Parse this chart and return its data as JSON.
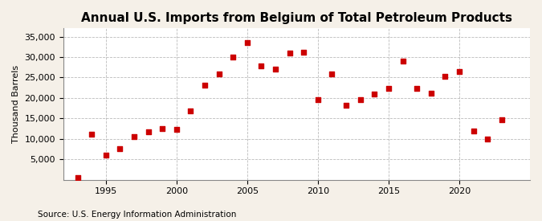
{
  "title": "Annual U.S. Imports from Belgium of Total Petroleum Products",
  "ylabel": "Thousand Barrels",
  "source": "Source: U.S. Energy Information Administration",
  "background_color": "#f5f0e8",
  "plot_background_color": "#ffffff",
  "marker_color": "#cc0000",
  "marker_size": 25,
  "years": [
    1993,
    1994,
    1995,
    1996,
    1997,
    1998,
    1999,
    2000,
    2001,
    2002,
    2003,
    2004,
    2005,
    2006,
    2007,
    2008,
    2009,
    2010,
    2011,
    2012,
    2013,
    2014,
    2015,
    2016,
    2017,
    2018,
    2019,
    2020,
    2021,
    2022,
    2023
  ],
  "values": [
    500,
    11200,
    6100,
    7700,
    10600,
    11800,
    12500,
    12300,
    16900,
    23100,
    25800,
    30000,
    33500,
    27900,
    27100,
    30900,
    31100,
    19600,
    25900,
    18300,
    19600,
    20900,
    22300,
    29000,
    22400,
    21100,
    25300,
    26500,
    11900,
    10000,
    14700
  ],
  "ylim": [
    0,
    37000
  ],
  "yticks": [
    5000,
    10000,
    15000,
    20000,
    25000,
    30000,
    35000
  ],
  "ytick_labels": [
    "5,000",
    "10,000",
    "15,000",
    "20,000",
    "25,000",
    "30,000",
    "35,000"
  ],
  "xlim": [
    1992,
    2025
  ],
  "xticks": [
    1995,
    2000,
    2005,
    2010,
    2015,
    2020
  ],
  "grid_color": "#aaaaaa",
  "title_fontsize": 11,
  "axis_fontsize": 8,
  "source_fontsize": 7.5
}
